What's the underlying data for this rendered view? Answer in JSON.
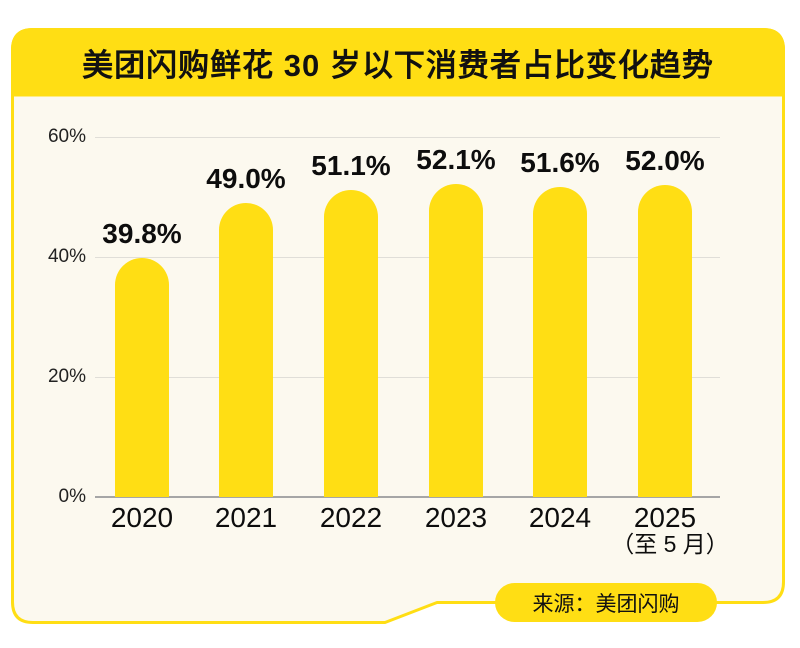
{
  "card": {
    "title": "美团闪购鲜花 30 岁以下消费者占比变化趋势",
    "source_badge": "来源：美团闪购"
  },
  "colors": {
    "brand_yellow": "#FFDE14",
    "card_bg": "#FCF9EF",
    "page_bg": "#FFFFFF",
    "grid": "#E0DED8",
    "axis": "#A6A6A6",
    "text": "#111111"
  },
  "chart_data": {
    "type": "bar",
    "title": "美团闪购鲜花 30 岁以下消费者占比变化趋势",
    "categories": [
      "2020",
      "2021",
      "2022",
      "2023",
      "2024",
      "2025"
    ],
    "category_notes": [
      "",
      "",
      "",
      "",
      "",
      "（至 5 月）"
    ],
    "values": [
      39.8,
      49.0,
      51.1,
      52.1,
      51.6,
      52.0
    ],
    "value_labels": [
      "39.8%",
      "49.0%",
      "51.1%",
      "52.1%",
      "51.6%",
      "52.0%"
    ],
    "xlabel": "",
    "ylabel": "",
    "ylim": [
      0,
      60
    ],
    "ytick_step": 20,
    "yticks": [
      "0%",
      "20%",
      "40%",
      "60%"
    ],
    "grid": "horizontal-only",
    "legend": "none",
    "bar_color": "#FFDE14",
    "source": "来源：美团闪购"
  }
}
